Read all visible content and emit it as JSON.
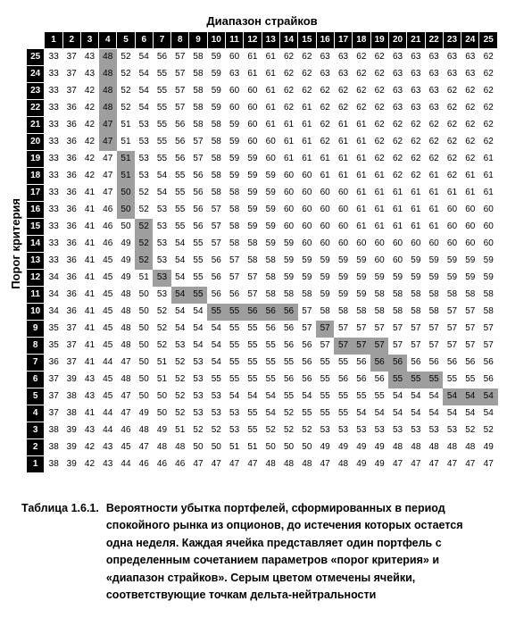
{
  "title_top": "Диапазон страйков",
  "title_left": "Порог критерия",
  "caption_label": "Таблица 1.6.1.",
  "caption_text": "Вероятности убытка портфелей, сформированных в период спокойного рынка из опционов, до истечения которых остается одна неделя. Каждая ячейка представляет один портфель с определенным сочетанием параметров «порог критерия» и «диапазон страйков». Серым цветом отмечены ячейки, соответствующие точкам дельта-нейтральности",
  "columns": [
    "1",
    "2",
    "3",
    "4",
    "5",
    "6",
    "7",
    "8",
    "9",
    "10",
    "11",
    "12",
    "13",
    "14",
    "15",
    "16",
    "17",
    "18",
    "19",
    "20",
    "21",
    "22",
    "23",
    "24",
    "25"
  ],
  "row_labels": [
    "25",
    "24",
    "23",
    "22",
    "21",
    "20",
    "19",
    "18",
    "17",
    "16",
    "15",
    "14",
    "13",
    "12",
    "11",
    "10",
    "9",
    "8",
    "7",
    "6",
    "5",
    "4",
    "3",
    "2",
    "1"
  ],
  "cells": [
    [
      33,
      37,
      43,
      48,
      52,
      54,
      56,
      57,
      58,
      59,
      60,
      61,
      61,
      62,
      62,
      63,
      63,
      62,
      62,
      63,
      63,
      63,
      63,
      63,
      62
    ],
    [
      33,
      37,
      43,
      48,
      52,
      54,
      55,
      57,
      58,
      59,
      63,
      61,
      61,
      62,
      62,
      63,
      63,
      62,
      62,
      63,
      63,
      63,
      63,
      63,
      62
    ],
    [
      33,
      37,
      42,
      48,
      52,
      54,
      55,
      57,
      58,
      59,
      60,
      60,
      61,
      62,
      62,
      62,
      62,
      62,
      62,
      63,
      63,
      63,
      62,
      62,
      62
    ],
    [
      33,
      36,
      42,
      48,
      52,
      54,
      55,
      57,
      58,
      59,
      60,
      60,
      61,
      62,
      61,
      62,
      62,
      62,
      62,
      63,
      63,
      63,
      62,
      62,
      62
    ],
    [
      33,
      36,
      42,
      47,
      51,
      53,
      55,
      56,
      58,
      58,
      59,
      60,
      61,
      61,
      61,
      62,
      61,
      61,
      62,
      62,
      62,
      62,
      62,
      62,
      62
    ],
    [
      33,
      36,
      42,
      47,
      51,
      53,
      55,
      56,
      57,
      58,
      59,
      60,
      60,
      61,
      61,
      62,
      61,
      61,
      62,
      62,
      62,
      62,
      62,
      62,
      62
    ],
    [
      33,
      36,
      42,
      47,
      51,
      53,
      55,
      56,
      57,
      58,
      59,
      59,
      60,
      61,
      61,
      61,
      61,
      61,
      62,
      62,
      62,
      62,
      62,
      62,
      61
    ],
    [
      33,
      36,
      42,
      47,
      51,
      53,
      54,
      55,
      56,
      58,
      59,
      59,
      59,
      60,
      60,
      61,
      61,
      61,
      61,
      62,
      62,
      61,
      62,
      61,
      61
    ],
    [
      33,
      36,
      41,
      47,
      50,
      52,
      54,
      55,
      56,
      58,
      58,
      59,
      59,
      60,
      60,
      60,
      60,
      61,
      61,
      61,
      61,
      61,
      61,
      61,
      61
    ],
    [
      33,
      36,
      41,
      46,
      50,
      52,
      53,
      55,
      56,
      57,
      58,
      59,
      59,
      60,
      60,
      60,
      60,
      61,
      61,
      61,
      61,
      61,
      60,
      60,
      60
    ],
    [
      33,
      36,
      41,
      46,
      50,
      52,
      53,
      55,
      56,
      57,
      58,
      59,
      59,
      60,
      60,
      60,
      60,
      61,
      61,
      61,
      61,
      61,
      60,
      60,
      60
    ],
    [
      33,
      36,
      41,
      46,
      49,
      52,
      53,
      54,
      55,
      57,
      58,
      58,
      59,
      59,
      60,
      60,
      60,
      60,
      60,
      60,
      60,
      60,
      60,
      60,
      60
    ],
    [
      33,
      36,
      41,
      45,
      49,
      52,
      53,
      54,
      55,
      56,
      57,
      58,
      58,
      59,
      59,
      59,
      59,
      59,
      60,
      60,
      59,
      59,
      59,
      59,
      59
    ],
    [
      34,
      36,
      41,
      45,
      49,
      51,
      53,
      54,
      55,
      56,
      57,
      57,
      58,
      59,
      59,
      59,
      59,
      59,
      59,
      59,
      59,
      59,
      59,
      59,
      59
    ],
    [
      34,
      36,
      41,
      45,
      48,
      50,
      53,
      54,
      55,
      56,
      56,
      57,
      58,
      58,
      58,
      59,
      59,
      59,
      58,
      58,
      58,
      58,
      58,
      58,
      58
    ],
    [
      34,
      36,
      41,
      45,
      48,
      50,
      52,
      54,
      54,
      55,
      55,
      56,
      56,
      56,
      57,
      58,
      58,
      58,
      58,
      58,
      58,
      58,
      57,
      57,
      58
    ],
    [
      35,
      37,
      41,
      45,
      48,
      50,
      52,
      54,
      54,
      54,
      55,
      55,
      56,
      56,
      57,
      57,
      57,
      57,
      57,
      57,
      57,
      57,
      57,
      57,
      57
    ],
    [
      35,
      37,
      41,
      45,
      48,
      50,
      52,
      53,
      54,
      54,
      55,
      55,
      55,
      56,
      56,
      57,
      57,
      57,
      57,
      57,
      57,
      57,
      57,
      57,
      57
    ],
    [
      36,
      37,
      41,
      44,
      47,
      50,
      51,
      52,
      53,
      54,
      55,
      55,
      55,
      55,
      56,
      55,
      55,
      56,
      56,
      56,
      56,
      56,
      56,
      56,
      56
    ],
    [
      37,
      39,
      43,
      45,
      48,
      50,
      51,
      52,
      53,
      55,
      55,
      55,
      55,
      56,
      56,
      55,
      56,
      56,
      56,
      55,
      55,
      55,
      55,
      55,
      56
    ],
    [
      37,
      38,
      43,
      45,
      47,
      50,
      50,
      52,
      53,
      53,
      54,
      54,
      54,
      55,
      54,
      55,
      55,
      55,
      55,
      54,
      54,
      54,
      54,
      54,
      54
    ],
    [
      37,
      38,
      41,
      44,
      47,
      49,
      50,
      52,
      53,
      53,
      53,
      55,
      54,
      52,
      55,
      55,
      55,
      54,
      54,
      54,
      54,
      54,
      54,
      54,
      54
    ],
    [
      38,
      39,
      43,
      44,
      46,
      48,
      49,
      51,
      52,
      52,
      53,
      55,
      52,
      52,
      52,
      53,
      53,
      53,
      53,
      53,
      53,
      53,
      53,
      52,
      52
    ],
    [
      38,
      39,
      42,
      43,
      45,
      47,
      48,
      48,
      50,
      50,
      51,
      51,
      50,
      50,
      50,
      49,
      49,
      49,
      49,
      48,
      48,
      48,
      48,
      48,
      49
    ],
    [
      38,
      39,
      42,
      43,
      44,
      46,
      46,
      46,
      47,
      47,
      47,
      47,
      48,
      48,
      48,
      47,
      48,
      49,
      49,
      47,
      47,
      47,
      47,
      47,
      47
    ]
  ],
  "highlights": {
    "0": [
      3
    ],
    "1": [
      3
    ],
    "2": [
      3
    ],
    "3": [
      3
    ],
    "4": [
      3
    ],
    "5": [
      3
    ],
    "6": [
      4
    ],
    "7": [
      4
    ],
    "8": [
      4
    ],
    "9": [
      4
    ],
    "10": [
      5
    ],
    "11": [
      5
    ],
    "12": [
      5
    ],
    "13": [
      6
    ],
    "14": [
      7,
      8
    ],
    "15": [
      9,
      10,
      11,
      12,
      13
    ],
    "16": [
      15
    ],
    "17": [
      16,
      17,
      18
    ],
    "18": [
      18,
      19
    ],
    "19": [
      19,
      20,
      21
    ],
    "20": [
      22,
      23,
      24
    ]
  },
  "colors": {
    "header_bg": "#000000",
    "header_fg": "#ffffff",
    "cell_bg": "#ffffff",
    "cell_fg": "#000000",
    "highlight_bg": "#9e9e9e"
  }
}
